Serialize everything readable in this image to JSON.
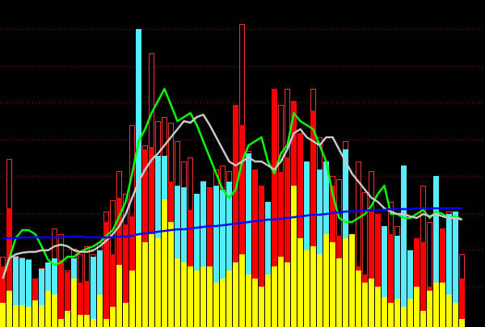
{
  "chart_data": {
    "type": "bar",
    "background": "#000000",
    "ylim": [
      0,
      405
    ],
    "yticks": [
      50,
      96,
      141,
      187,
      232,
      278,
      323,
      369
    ],
    "grid": true,
    "grid_color": "#b00000",
    "series": [
      {
        "style": "outline",
        "color": "#ff2a2a",
        "values": [
          87,
          208,
          88,
          86,
          84,
          60,
          73,
          80,
          122,
          115,
          70,
          97,
          90,
          100,
          90,
          105,
          143,
          157,
          193,
          165,
          250,
          369,
          225,
          339,
          255,
          260,
          253,
          230,
          205,
          210,
          165,
          181,
          173,
          195,
          200,
          193,
          275,
          375,
          218,
          195,
          175,
          155,
          295,
          275,
          295,
          280,
          240,
          205,
          295,
          235,
          205,
          187,
          183,
          230,
          115,
          205,
          167,
          193,
          140,
          125,
          155,
          125,
          200,
          95,
          110,
          175,
          130,
          187,
          122,
          143,
          143,
          90
        ]
      },
      {
        "style": "fill",
        "colors": [
          "#ff0000",
          "#ff0000",
          "#55eeff",
          "#55eeff",
          "#55eeff",
          "#ff0000",
          "#55eeff",
          "#55eeff",
          "#55eeff",
          "#ff0000",
          "#ff0000",
          "#55eeff",
          "#ff0000",
          "#ff0000",
          "#55eeff",
          "#55eeff",
          "#ff0000",
          "#ff0000",
          "#ff0000",
          "#ff0000",
          "#ff0000",
          "#55eeff",
          "#ff0000",
          "#ff0000",
          "#55eeff",
          "#55eeff",
          "#ff0000",
          "#55eeff",
          "#55eeff",
          "#ff0000",
          "#55eeff",
          "#55eeff",
          "#ff0000",
          "#55eeff",
          "#55eeff",
          "#55eeff",
          "#ff0000",
          "#ff0000",
          "#55eeff",
          "#ff0000",
          "#ff0000",
          "#55eeff",
          "#ff0000",
          "#ff0000",
          "#ff0000",
          "#ff0000",
          "#ff0000",
          "#55eeff",
          "#ff0000",
          "#55eeff",
          "#55eeff",
          "#ff0000",
          "#ff0000",
          "#55eeff",
          "#ff0000",
          "#ff0000",
          "#ff0000",
          "#ff0000",
          "#ff0000",
          "#55eeff",
          "#ff0000",
          "#55eeff",
          "#55eeff",
          "#55eeff",
          "#ff0000",
          "#ff0000",
          "#ff0000",
          "#55eeff",
          "#ff0000",
          "#55eeff",
          "#55eeff",
          "#ff0000"
        ],
        "values": [
          75,
          147,
          87,
          85,
          83,
          60,
          72,
          80,
          85,
          83,
          68,
          85,
          55,
          57,
          87,
          95,
          130,
          90,
          160,
          127,
          137,
          369,
          220,
          223,
          212,
          212,
          180,
          175,
          173,
          145,
          165,
          180,
          172,
          175,
          170,
          180,
          275,
          250,
          215,
          195,
          175,
          155,
          295,
          192,
          210,
          280,
          240,
          205,
          268,
          195,
          205,
          175,
          113,
          220,
          115,
          75,
          65,
          143,
          140,
          125,
          115,
          113,
          200,
          95,
          110,
          105,
          50,
          187,
          122,
          140,
          143,
          60
        ]
      },
      {
        "style": "fill",
        "color": "#ffff00",
        "values": [
          30,
          45,
          27,
          27,
          25,
          33,
          27,
          45,
          40,
          10,
          20,
          60,
          15,
          15,
          10,
          40,
          10,
          25,
          77,
          30,
          70,
          113,
          105,
          115,
          110,
          158,
          130,
          85,
          80,
          75,
          70,
          75,
          75,
          55,
          60,
          70,
          80,
          90,
          65,
          60,
          50,
          65,
          75,
          87,
          80,
          175,
          110,
          95,
          100,
          90,
          115,
          105,
          85,
          110,
          115,
          70,
          55,
          60,
          50,
          37,
          30,
          35,
          25,
          35,
          50,
          20,
          45,
          55,
          55,
          40,
          30,
          10
        ]
      },
      {
        "type": "line",
        "color": "#00ff00",
        "values": [
          60,
          85,
          110,
          120,
          120,
          115,
          100,
          83,
          77,
          80,
          87,
          87,
          93,
          97,
          100,
          105,
          113,
          120,
          137,
          155,
          190,
          230,
          245,
          265,
          280,
          295,
          275,
          255,
          260,
          265,
          250,
          230,
          210,
          190,
          170,
          160,
          170,
          205,
          225,
          230,
          235,
          205,
          190,
          215,
          225,
          265,
          255,
          250,
          245,
          225,
          205,
          165,
          135,
          130,
          130,
          135,
          140,
          150,
          165,
          175,
          140,
          140,
          135,
          135,
          140,
          145,
          135,
          143,
          140,
          135,
          137,
          133
        ]
      },
      {
        "type": "line",
        "color": "#c8c8c8",
        "values": [
          60,
          85,
          90,
          92,
          93,
          93,
          95,
          95,
          100,
          102,
          100,
          95,
          93,
          93,
          95,
          100,
          107,
          115,
          125,
          140,
          160,
          180,
          195,
          207,
          215,
          225,
          235,
          245,
          255,
          253,
          260,
          263,
          250,
          235,
          220,
          205,
          200,
          205,
          210,
          205,
          205,
          200,
          195,
          205,
          220,
          240,
          245,
          235,
          230,
          225,
          235,
          235,
          220,
          205,
          190,
          180,
          170,
          160,
          155,
          147,
          143,
          140,
          140,
          137,
          135,
          140,
          137,
          140,
          137,
          135,
          135,
          133
        ]
      },
      {
        "type": "line",
        "color": "#0000ff",
        "values": [
          110,
          110,
          110,
          111,
          111,
          111,
          111,
          111,
          111,
          111,
          112,
          112,
          112,
          111,
          111,
          111,
          111,
          111,
          112,
          112,
          113,
          115,
          116,
          117,
          118,
          119,
          120,
          121,
          121,
          122,
          123,
          124,
          125,
          125,
          126,
          127,
          128,
          129,
          130,
          131,
          132,
          133,
          133,
          134,
          135,
          136,
          137,
          138,
          139,
          139,
          140,
          141,
          142,
          143,
          143,
          144,
          144,
          145,
          145,
          145,
          146,
          146,
          146,
          146,
          147,
          147,
          147,
          147,
          147,
          147,
          147,
          147
        ]
      }
    ]
  }
}
